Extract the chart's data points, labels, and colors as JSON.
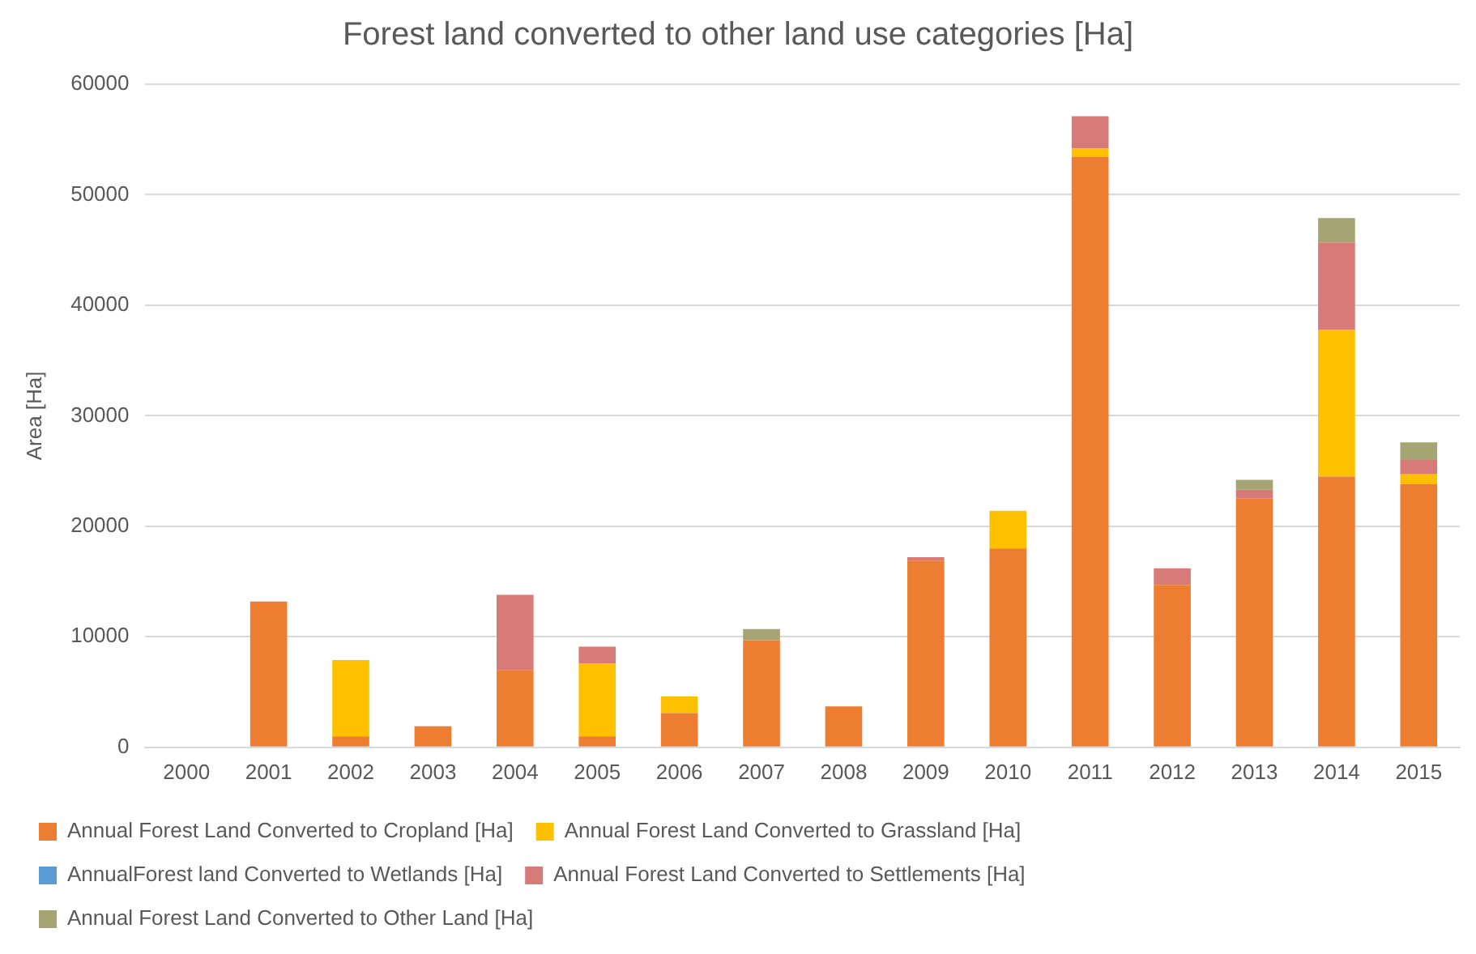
{
  "chart_data": {
    "type": "bar",
    "title": "Forest land converted to other land use categories [Ha]",
    "ylabel": "Area [Ha]",
    "categories": [
      "2000",
      "2001",
      "2002",
      "2003",
      "2004",
      "2005",
      "2006",
      "2007",
      "2008",
      "2009",
      "2010",
      "2011",
      "2012",
      "2013",
      "2014",
      "2015"
    ],
    "stacked": true,
    "ylim": [
      0,
      60000
    ],
    "yticks": [
      0,
      10000,
      20000,
      30000,
      40000,
      50000,
      60000
    ],
    "grid": "y",
    "legend": "bottom",
    "series": [
      {
        "name": "Annual Forest Land Converted to Cropland [Ha]",
        "color": "#ed7d31",
        "values": [
          0,
          13200,
          1000,
          1900,
          7000,
          1000,
          3100,
          9700,
          3700,
          16900,
          18000,
          53400,
          14700,
          22500,
          24500,
          23800
        ]
      },
      {
        "name": "Annual Forest Land Converted to Grassland [Ha]",
        "color": "#ffc000",
        "values": [
          0,
          0,
          6900,
          0,
          0,
          6600,
          1500,
          0,
          0,
          0,
          3400,
          800,
          0,
          0,
          13300,
          900
        ]
      },
      {
        "name": "AnnualForest land Converted to Wetlands [Ha]",
        "color": "#5b9bd5",
        "values": [
          0,
          0,
          0,
          0,
          0,
          0,
          0,
          0,
          0,
          0,
          0,
          0,
          0,
          0,
          0,
          0
        ]
      },
      {
        "name": "Annual Forest Land Converted to Settlements [Ha]",
        "color": "#d87a78",
        "values": [
          0,
          0,
          0,
          0,
          6800,
          1500,
          0,
          0,
          0,
          300,
          0,
          2900,
          1500,
          800,
          7900,
          1300
        ]
      },
      {
        "name": "Annual Forest Land Converted to Other Land [Ha]",
        "color": "#a5a573",
        "values": [
          0,
          0,
          0,
          0,
          0,
          0,
          0,
          1000,
          0,
          0,
          0,
          0,
          0,
          900,
          2200,
          1600
        ]
      }
    ]
  }
}
